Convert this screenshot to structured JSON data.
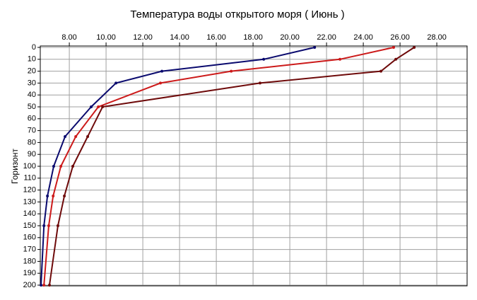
{
  "chart_data": {
    "type": "line",
    "title": "Температура воды открытого моря     ( Июнь )",
    "y_label": "Горизонт",
    "y": [
      0,
      10,
      20,
      30,
      50,
      75,
      100,
      125,
      150,
      200
    ],
    "series": [
      {
        "color": "#0a0a6e",
        "values": [
          21.35,
          18.58,
          13.04,
          10.54,
          9.19,
          7.77,
          7.15,
          6.81,
          6.62,
          6.46
        ]
      },
      {
        "color": "#cc1a1a",
        "values": [
          25.65,
          22.73,
          16.81,
          12.96,
          9.58,
          8.35,
          7.54,
          7.12,
          6.88,
          6.62
        ]
      },
      {
        "color": "#6e0a0a",
        "values": [
          26.77,
          25.77,
          24.96,
          18.38,
          9.81,
          9.0,
          8.19,
          7.73,
          7.38,
          6.92
        ]
      }
    ],
    "xlim": [
      6.42,
      29.65
    ],
    "xticks": [
      {
        "value": 8,
        "label": "8.00"
      },
      {
        "value": 10,
        "label": "10.00"
      },
      {
        "value": 12,
        "label": "12.00"
      },
      {
        "value": 14,
        "label": "14.00"
      },
      {
        "value": 16,
        "label": "16.00"
      },
      {
        "value": 18,
        "label": "18.00"
      },
      {
        "value": 20,
        "label": "20.00"
      },
      {
        "value": 22,
        "label": "22.00"
      },
      {
        "value": 24,
        "label": "24.00"
      },
      {
        "value": 26,
        "label": "26.00"
      },
      {
        "value": 28,
        "label": "28.00"
      }
    ],
    "ylim": [
      0,
      200
    ],
    "yticks": [
      0,
      10,
      20,
      30,
      40,
      50,
      60,
      70,
      80,
      90,
      100,
      110,
      120,
      130,
      140,
      150,
      160,
      170,
      180,
      190,
      200
    ],
    "grid": true
  }
}
